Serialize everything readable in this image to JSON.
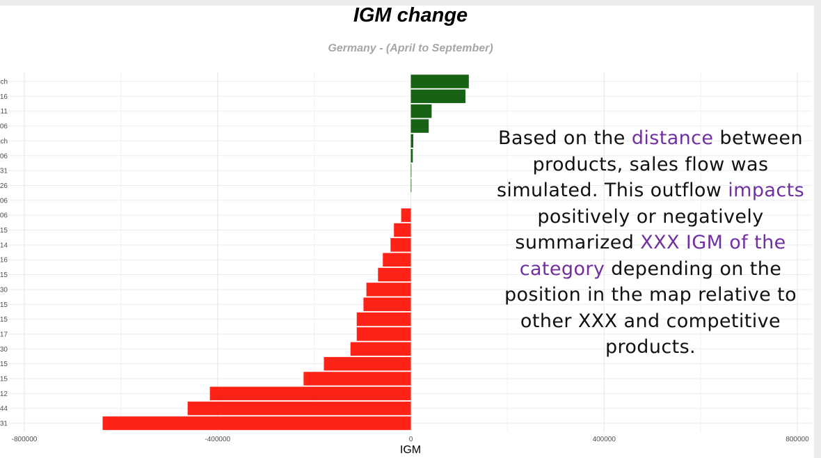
{
  "chart_data": {
    "type": "bar",
    "orientation": "horizontal",
    "title": "IGM change",
    "subtitle": "Germany - (April to September)",
    "xlabel": "IGM",
    "ylabel": "",
    "xlim": [
      -800000,
      800000
    ],
    "xticks": [
      -800000,
      -400000,
      0,
      400000,
      800000
    ],
    "xtick_labels": [
      "-800000",
      "-400000",
      "0",
      "400000",
      "800000"
    ],
    "grid": true,
    "categories": [
      "ch",
      "16",
      "11",
      "06",
      "ch",
      "06",
      "31",
      "26",
      "06",
      "06",
      "15",
      "14",
      "16",
      "15",
      "30",
      "15",
      "15",
      "17",
      "30",
      "15",
      "15",
      "12",
      "44",
      "31"
    ],
    "values": [
      120000,
      113000,
      43000,
      37000,
      5000,
      4000,
      1000,
      300,
      0,
      -20000,
      -35000,
      -42000,
      -58000,
      -68000,
      -92000,
      -98000,
      -112000,
      -112000,
      -125000,
      -180000,
      -222000,
      -416000,
      -462000,
      -638000
    ],
    "colors": {
      "positive": "#166316",
      "negative": "#ff2217"
    }
  },
  "annotation": {
    "segments": [
      {
        "text": "Based on the ",
        "highlight": false
      },
      {
        "text": "distance",
        "highlight": true
      },
      {
        "text": " between products, sales flow was simulated. This outflow ",
        "highlight": false
      },
      {
        "text": "impacts",
        "highlight": true
      },
      {
        "text": " positively or negatively summarized ",
        "highlight": false
      },
      {
        "text": "XXX IGM of the category",
        "highlight": true
      },
      {
        "text": " depending on the position in the map relative to other XXX and competitive products.",
        "highlight": false
      }
    ],
    "highlight_color": "#7030a0"
  }
}
